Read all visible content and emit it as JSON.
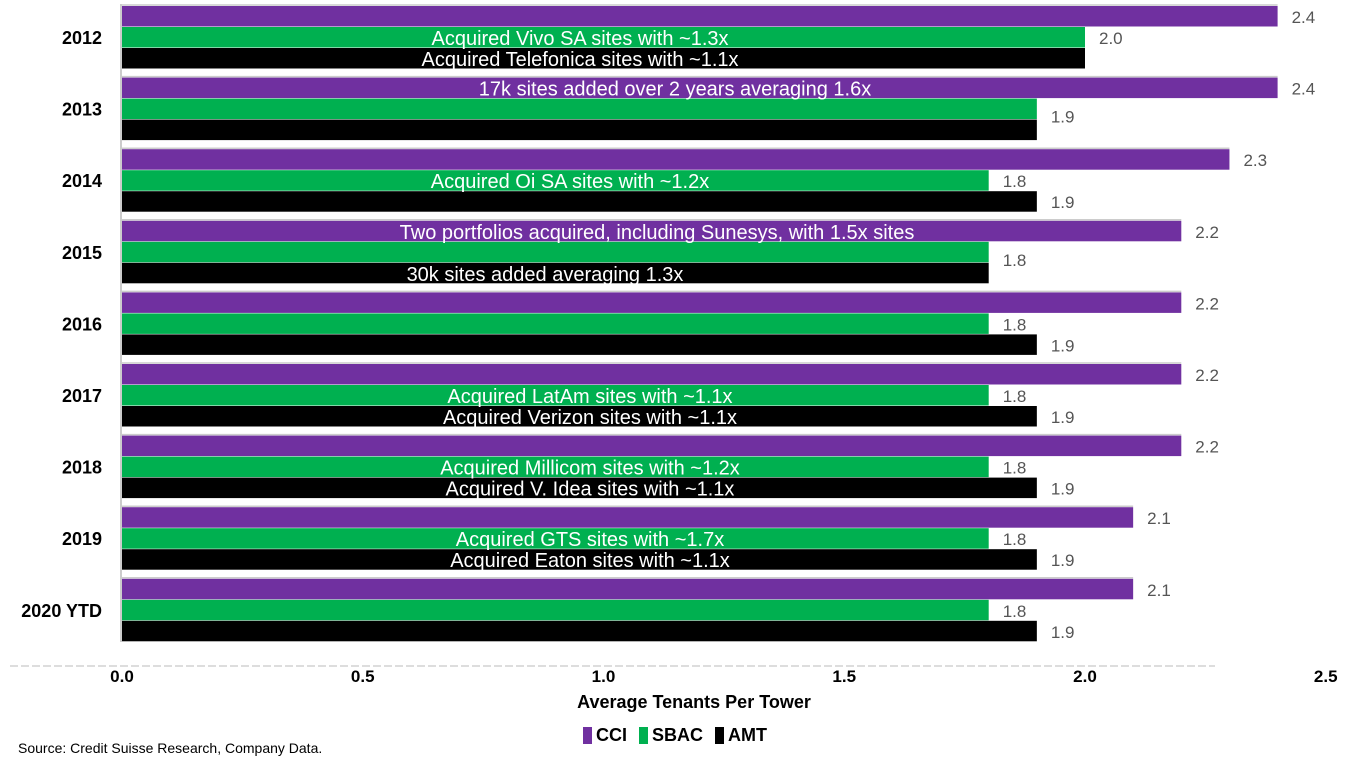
{
  "chart_data": {
    "type": "bar",
    "orientation": "horizontal",
    "title": "",
    "xlabel": "Average Tenants Per Tower",
    "ylabel": "",
    "xlim": [
      0,
      2.5
    ],
    "xticks": [
      "0.0",
      "0.5",
      "1.0",
      "1.5",
      "2.0",
      "2.5"
    ],
    "categories": [
      "2012",
      "2013",
      "2014",
      "2015",
      "2016",
      "2017",
      "2018",
      "2019",
      "2020 YTD"
    ],
    "series": [
      {
        "name": "CCI",
        "color": "#7030a0",
        "values": [
          2.4,
          2.4,
          2.3,
          2.2,
          2.2,
          2.2,
          2.2,
          2.1,
          2.1
        ],
        "labels": [
          "2.4",
          "2.4",
          "2.3",
          "2.2",
          "2.2",
          "2.2",
          "2.2",
          "2.1",
          "2.1"
        ]
      },
      {
        "name": "SBAC",
        "color": "#00b050",
        "values": [
          2.0,
          1.9,
          1.8,
          1.8,
          1.8,
          1.8,
          1.8,
          1.8,
          1.8
        ],
        "labels": [
          "2.0",
          null,
          "1.8",
          null,
          "1.8",
          "1.8",
          "1.8",
          "1.8",
          "1.8"
        ]
      },
      {
        "name": "AMT",
        "color": "#000000",
        "values": [
          2.0,
          1.9,
          1.9,
          1.8,
          1.9,
          1.9,
          1.9,
          1.9,
          1.9
        ],
        "labels": [
          null,
          "1.9",
          "1.9",
          "1.8",
          "1.9",
          "1.9",
          "1.9",
          "1.9",
          "1.9"
        ]
      }
    ],
    "annotations": [
      {
        "category": "2012",
        "series": "SBAC",
        "text": "Acquired Vivo SA sites with ~1.3x"
      },
      {
        "category": "2012",
        "series": "AMT",
        "text": "Acquired Telefonica sites with ~1.1x"
      },
      {
        "category": "2013",
        "series": "CCI",
        "text": "17k sites added over 2 years averaging 1.6x"
      },
      {
        "category": "2014",
        "series": "SBAC",
        "text": "Acquired Oi SA sites with ~1.2x"
      },
      {
        "category": "2015",
        "series": "CCI",
        "text": "Two portfolios acquired, including Sunesys, with 1.5x sites"
      },
      {
        "category": "2015",
        "series": "AMT",
        "text": "30k sites added averaging 1.3x"
      },
      {
        "category": "2017",
        "series": "SBAC",
        "text": "Acquired LatAm sites with ~1.1x"
      },
      {
        "category": "2017",
        "series": "AMT",
        "text": "Acquired Verizon sites with ~1.1x"
      },
      {
        "category": "2018",
        "series": "SBAC",
        "text": "Acquired Millicom sites with ~1.2x"
      },
      {
        "category": "2018",
        "series": "AMT",
        "text": "Acquired V. Idea sites with ~1.1x"
      },
      {
        "category": "2019",
        "series": "SBAC",
        "text": "Acquired GTS sites with ~1.7x"
      },
      {
        "category": "2019",
        "series": "AMT",
        "text": "Acquired Eaton sites with ~1.1x"
      }
    ],
    "legend": "bottom-center",
    "grid": false
  },
  "source": "Source: Credit Suisse Research, Company Data."
}
